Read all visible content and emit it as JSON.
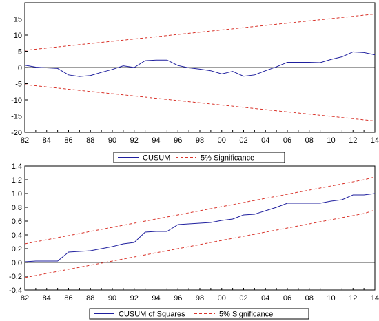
{
  "chart_data": [
    {
      "type": "line",
      "x": [
        82,
        83,
        84,
        85,
        86,
        87,
        88,
        89,
        90,
        91,
        92,
        93,
        94,
        95,
        96,
        97,
        98,
        99,
        100,
        101,
        102,
        103,
        104,
        105,
        106,
        107,
        108,
        109,
        110,
        111,
        112,
        113,
        114
      ],
      "x_tick_labels": [
        "82",
        "84",
        "86",
        "88",
        "90",
        "92",
        "94",
        "96",
        "98",
        "00",
        "02",
        "04",
        "06",
        "08",
        "10",
        "12",
        "14"
      ],
      "y_ticks": [
        -20,
        -15,
        -10,
        -5,
        0,
        5,
        10,
        15
      ],
      "ylim": [
        -20,
        20
      ],
      "xlim": [
        82,
        114
      ],
      "series": [
        {
          "name": "CUSUM",
          "style": "solid",
          "color": "#1f1f9e",
          "values": [
            0.7,
            0.1,
            -0.1,
            -0.3,
            -2.3,
            -2.8,
            -2.5,
            -1.5,
            -0.6,
            0.5,
            0.0,
            2.1,
            2.3,
            2.3,
            0.6,
            -0.1,
            -0.5,
            -1.0,
            -2.0,
            -1.2,
            -2.7,
            -2.3,
            -1.0,
            0.2,
            1.6,
            1.6,
            1.6,
            1.5,
            2.5,
            3.3,
            4.8,
            4.6,
            3.9
          ]
        },
        {
          "name": "5% Significance",
          "style": "dashed",
          "color": "#d9342b",
          "values": [
            5.3,
            5.65,
            6.0,
            6.35,
            6.7,
            7.05,
            7.4,
            7.75,
            8.1,
            8.45,
            8.8,
            9.15,
            9.5,
            9.85,
            10.2,
            10.55,
            10.9,
            11.25,
            11.6,
            11.95,
            12.3,
            12.65,
            13.0,
            13.35,
            13.7,
            14.05,
            14.4,
            14.75,
            15.1,
            15.45,
            15.8,
            16.15,
            16.5
          ]
        },
        {
          "name": "",
          "style": "dashed",
          "color": "#d9342b",
          "values": [
            -5.3,
            -5.65,
            -6.0,
            -6.35,
            -6.7,
            -7.05,
            -7.4,
            -7.75,
            -8.1,
            -8.45,
            -8.8,
            -9.15,
            -9.5,
            -9.85,
            -10.2,
            -10.55,
            -10.9,
            -11.25,
            -11.6,
            -11.95,
            -12.3,
            -12.65,
            -13.0,
            -13.35,
            -13.7,
            -14.05,
            -14.4,
            -14.75,
            -15.1,
            -15.45,
            -15.8,
            -16.15,
            -16.5
          ]
        }
      ],
      "zero_line": true,
      "legend": [
        {
          "label": "CUSUM",
          "style": "solid",
          "color": "#1f1f9e"
        },
        {
          "label": "5% Significance",
          "style": "dashed",
          "color": "#d9342b"
        }
      ],
      "legend_placement": "bottom-center"
    },
    {
      "type": "line",
      "x": [
        82,
        83,
        84,
        85,
        86,
        87,
        88,
        89,
        90,
        91,
        92,
        93,
        94,
        95,
        96,
        97,
        98,
        99,
        100,
        101,
        102,
        103,
        104,
        105,
        106,
        107,
        108,
        109,
        110,
        111,
        112,
        113,
        114
      ],
      "x_tick_labels": [
        "82",
        "84",
        "86",
        "88",
        "90",
        "92",
        "94",
        "96",
        "98",
        "00",
        "02",
        "04",
        "06",
        "08",
        "10",
        "12",
        "14"
      ],
      "y_ticks": [
        -0.4,
        -0.2,
        0.0,
        0.2,
        0.4,
        0.6,
        0.8,
        1.0,
        1.2,
        1.4
      ],
      "y_tick_labels": [
        "-0.4",
        "-0.2",
        "0.0",
        "0.2",
        "0.4",
        "0.6",
        "0.8",
        "1.0",
        "1.2",
        "1.4"
      ],
      "ylim": [
        -0.4,
        1.4
      ],
      "xlim": [
        82,
        114
      ],
      "series": [
        {
          "name": "CUSUM of Squares",
          "style": "solid",
          "color": "#1f1f9e",
          "values": [
            0.01,
            0.02,
            0.02,
            0.02,
            0.15,
            0.16,
            0.17,
            0.2,
            0.23,
            0.27,
            0.29,
            0.44,
            0.45,
            0.45,
            0.55,
            0.56,
            0.57,
            0.58,
            0.61,
            0.63,
            0.69,
            0.7,
            0.75,
            0.8,
            0.86,
            0.86,
            0.86,
            0.86,
            0.89,
            0.91,
            0.98,
            0.98,
            1.0
          ]
        },
        {
          "name": "5% Significance",
          "style": "dashed",
          "color": "#d9342b",
          "values": [
            0.27,
            0.3,
            0.33,
            0.36,
            0.39,
            0.42,
            0.45,
            0.48,
            0.51,
            0.54,
            0.57,
            0.6,
            0.63,
            0.66,
            0.69,
            0.72,
            0.75,
            0.78,
            0.81,
            0.84,
            0.87,
            0.9,
            0.93,
            0.96,
            0.99,
            1.02,
            1.05,
            1.08,
            1.11,
            1.14,
            1.17,
            1.2,
            1.24
          ]
        },
        {
          "name": "",
          "style": "dashed",
          "color": "#d9342b",
          "values": [
            -0.22,
            -0.19,
            -0.16,
            -0.13,
            -0.1,
            -0.07,
            -0.04,
            -0.01,
            0.02,
            0.05,
            0.08,
            0.11,
            0.14,
            0.17,
            0.2,
            0.23,
            0.26,
            0.29,
            0.32,
            0.35,
            0.38,
            0.41,
            0.44,
            0.47,
            0.5,
            0.53,
            0.56,
            0.59,
            0.62,
            0.65,
            0.68,
            0.71,
            0.76
          ]
        }
      ],
      "zero_line": true,
      "legend": [
        {
          "label": "CUSUM of Squares",
          "style": "solid",
          "color": "#1f1f9e"
        },
        {
          "label": "5% Significance",
          "style": "dashed",
          "color": "#d9342b"
        }
      ],
      "legend_placement": "bottom-center"
    }
  ]
}
